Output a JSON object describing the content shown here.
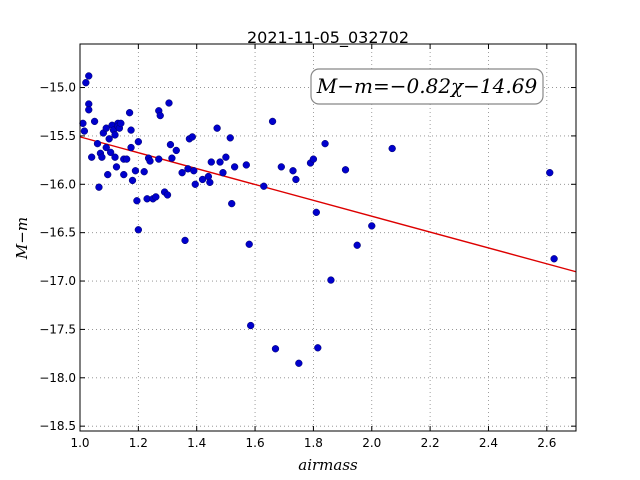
{
  "chart_data": {
    "type": "scatter",
    "title": "2021-11-05_032702",
    "xlabel": "airmass",
    "ylabel": "M−m",
    "xlim": [
      1.0,
      2.7
    ],
    "ylim": [
      -18.55,
      -14.55
    ],
    "y_inverted": true,
    "xticks": [
      1.0,
      1.2,
      1.4,
      1.6,
      1.8,
      2.0,
      2.2,
      2.4,
      2.6
    ],
    "xtick_labels": [
      "1.0",
      "1.2",
      "1.4",
      "1.6",
      "1.8",
      "2.0",
      "2.2",
      "2.4",
      "2.6"
    ],
    "yticks": [
      -15.0,
      -15.5,
      -16.0,
      -16.5,
      -17.0,
      -17.5,
      -18.0,
      -18.5
    ],
    "ytick_labels": [
      "−15.0",
      "−15.5",
      "−16.0",
      "−16.5",
      "−17.0",
      "−17.5",
      "−18.0",
      "−18.5"
    ],
    "grid": true,
    "annotation": "M−m=−0.82χ−14.69",
    "fit_line": {
      "slope": -0.82,
      "intercept": -14.69,
      "color": "#dd0000"
    },
    "point_color": "#0000cc",
    "points": [
      [
        1.01,
        -15.37
      ],
      [
        1.015,
        -15.45
      ],
      [
        1.02,
        -14.95
      ],
      [
        1.03,
        -14.88
      ],
      [
        1.03,
        -15.17
      ],
      [
        1.03,
        -15.23
      ],
      [
        1.04,
        -15.72
      ],
      [
        1.05,
        -15.35
      ],
      [
        1.06,
        -15.58
      ],
      [
        1.065,
        -16.03
      ],
      [
        1.07,
        -15.68
      ],
      [
        1.075,
        -15.72
      ],
      [
        1.08,
        -15.47
      ],
      [
        1.09,
        -15.42
      ],
      [
        1.09,
        -15.62
      ],
      [
        1.095,
        -15.9
      ],
      [
        1.1,
        -15.53
      ],
      [
        1.105,
        -15.67
      ],
      [
        1.11,
        -15.39
      ],
      [
        1.115,
        -15.44
      ],
      [
        1.12,
        -15.49
      ],
      [
        1.12,
        -15.72
      ],
      [
        1.125,
        -15.82
      ],
      [
        1.13,
        -15.37
      ],
      [
        1.13,
        -15.4
      ],
      [
        1.135,
        -15.42
      ],
      [
        1.14,
        -15.37
      ],
      [
        1.15,
        -15.74
      ],
      [
        1.15,
        -15.9
      ],
      [
        1.16,
        -15.74
      ],
      [
        1.17,
        -15.26
      ],
      [
        1.175,
        -15.44
      ],
      [
        1.175,
        -15.62
      ],
      [
        1.18,
        -15.96
      ],
      [
        1.19,
        -15.86
      ],
      [
        1.195,
        -16.17
      ],
      [
        1.2,
        -15.56
      ],
      [
        1.2,
        -16.47
      ],
      [
        1.22,
        -15.87
      ],
      [
        1.23,
        -16.15
      ],
      [
        1.235,
        -15.73
      ],
      [
        1.24,
        -15.76
      ],
      [
        1.25,
        -16.15
      ],
      [
        1.26,
        -16.13
      ],
      [
        1.27,
        -15.74
      ],
      [
        1.27,
        -15.24
      ],
      [
        1.275,
        -15.29
      ],
      [
        1.29,
        -16.08
      ],
      [
        1.3,
        -16.11
      ],
      [
        1.305,
        -15.16
      ],
      [
        1.31,
        -15.59
      ],
      [
        1.315,
        -15.73
      ],
      [
        1.33,
        -15.65
      ],
      [
        1.35,
        -15.88
      ],
      [
        1.36,
        -16.58
      ],
      [
        1.37,
        -15.84
      ],
      [
        1.375,
        -15.53
      ],
      [
        1.385,
        -15.51
      ],
      [
        1.39,
        -15.86
      ],
      [
        1.395,
        -16.0
      ],
      [
        1.42,
        -15.95
      ],
      [
        1.44,
        -15.92
      ],
      [
        1.445,
        -15.98
      ],
      [
        1.45,
        -15.77
      ],
      [
        1.47,
        -15.42
      ],
      [
        1.48,
        -15.77
      ],
      [
        1.49,
        -15.88
      ],
      [
        1.5,
        -15.72
      ],
      [
        1.515,
        -15.52
      ],
      [
        1.52,
        -16.2
      ],
      [
        1.53,
        -15.82
      ],
      [
        1.57,
        -15.8
      ],
      [
        1.58,
        -16.62
      ],
      [
        1.585,
        -17.46
      ],
      [
        1.63,
        -16.02
      ],
      [
        1.66,
        -15.35
      ],
      [
        1.67,
        -17.7
      ],
      [
        1.69,
        -15.82
      ],
      [
        1.73,
        -15.86
      ],
      [
        1.74,
        -15.95
      ],
      [
        1.75,
        -17.85
      ],
      [
        1.79,
        -15.78
      ],
      [
        1.8,
        -15.74
      ],
      [
        1.81,
        -16.29
      ],
      [
        1.815,
        -17.69
      ],
      [
        1.84,
        -15.58
      ],
      [
        1.86,
        -16.99
      ],
      [
        1.91,
        -15.85
      ],
      [
        1.95,
        -16.63
      ],
      [
        2.0,
        -16.43
      ],
      [
        2.07,
        -15.63
      ],
      [
        2.61,
        -15.88
      ],
      [
        2.625,
        -16.77
      ]
    ]
  }
}
